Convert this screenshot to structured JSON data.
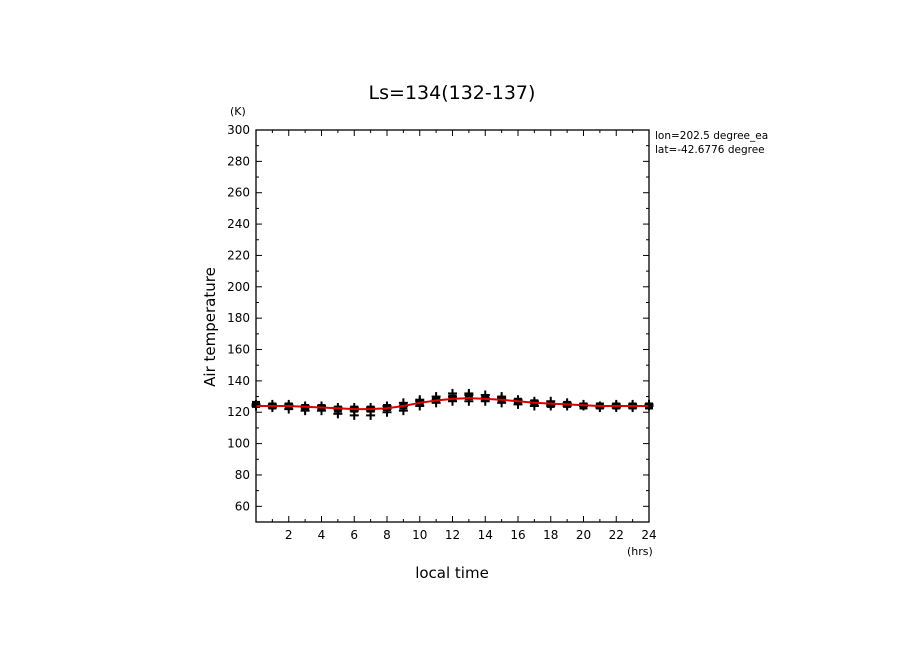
{
  "chart_data": {
    "type": "scatter",
    "title": "Ls=134(132-137)",
    "xlabel": "local time",
    "ylabel": "Air temperature",
    "x_unit": "(hrs)",
    "y_unit": "(K)",
    "xlim": [
      0,
      24
    ],
    "ylim": [
      50,
      300
    ],
    "xticks": [
      2,
      4,
      6,
      8,
      10,
      12,
      14,
      16,
      18,
      20,
      22,
      24
    ],
    "yticks": [
      60,
      80,
      100,
      120,
      140,
      160,
      180,
      200,
      220,
      240,
      260,
      280,
      300
    ],
    "annotations": [
      "lon=202.5 degree_ea",
      "lat=-42.6776 degree"
    ],
    "series": [
      {
        "marker": "plus",
        "color": "#000000",
        "points": [
          [
            0,
            125
          ],
          [
            0,
            124
          ],
          [
            1,
            124
          ],
          [
            1,
            123
          ],
          [
            1,
            125
          ],
          [
            2,
            124
          ],
          [
            2,
            122
          ],
          [
            2,
            125
          ],
          [
            3,
            123
          ],
          [
            3,
            121
          ],
          [
            3,
            124
          ],
          [
            4,
            123
          ],
          [
            4,
            121
          ],
          [
            4,
            124
          ],
          [
            5,
            122
          ],
          [
            5,
            119
          ],
          [
            5,
            123
          ],
          [
            6,
            121
          ],
          [
            6,
            118
          ],
          [
            6,
            123
          ],
          [
            7,
            121
          ],
          [
            7,
            118
          ],
          [
            7,
            123
          ],
          [
            8,
            122
          ],
          [
            8,
            120
          ],
          [
            8,
            124
          ],
          [
            9,
            124
          ],
          [
            9,
            121
          ],
          [
            9,
            126
          ],
          [
            10,
            127
          ],
          [
            10,
            124
          ],
          [
            10,
            128
          ],
          [
            11,
            128
          ],
          [
            11,
            126
          ],
          [
            11,
            130
          ],
          [
            12,
            130
          ],
          [
            12,
            127
          ],
          [
            12,
            132
          ],
          [
            13,
            131
          ],
          [
            13,
            127
          ],
          [
            13,
            132
          ],
          [
            14,
            129
          ],
          [
            14,
            127
          ],
          [
            14,
            131
          ],
          [
            15,
            129
          ],
          [
            15,
            126
          ],
          [
            15,
            130
          ],
          [
            16,
            127
          ],
          [
            16,
            125
          ],
          [
            16,
            128
          ],
          [
            17,
            126
          ],
          [
            17,
            124
          ],
          [
            17,
            127
          ],
          [
            18,
            125
          ],
          [
            18,
            124
          ],
          [
            18,
            127
          ],
          [
            19,
            125
          ],
          [
            19,
            124
          ],
          [
            19,
            126
          ],
          [
            20,
            124
          ],
          [
            20,
            125
          ],
          [
            21,
            124
          ],
          [
            21,
            123
          ],
          [
            22,
            124
          ],
          [
            22,
            123
          ],
          [
            22,
            125
          ],
          [
            23,
            124
          ],
          [
            23,
            125
          ],
          [
            23,
            123
          ],
          [
            24,
            125
          ],
          [
            24,
            124
          ]
        ]
      },
      {
        "marker": "square",
        "color": "#000000",
        "points": [
          [
            0,
            125
          ],
          [
            1,
            124
          ],
          [
            2,
            124
          ],
          [
            3,
            123
          ],
          [
            4,
            123
          ],
          [
            5,
            122
          ],
          [
            6,
            122
          ],
          [
            7,
            122
          ],
          [
            8,
            123
          ],
          [
            9,
            124
          ],
          [
            10,
            126
          ],
          [
            11,
            128
          ],
          [
            12,
            129
          ],
          [
            13,
            130
          ],
          [
            14,
            129
          ],
          [
            15,
            128
          ],
          [
            16,
            127
          ],
          [
            17,
            126
          ],
          [
            18,
            125
          ],
          [
            19,
            125
          ],
          [
            20,
            124
          ],
          [
            21,
            124
          ],
          [
            22,
            124
          ],
          [
            23,
            124
          ],
          [
            24,
            124
          ]
        ]
      },
      {
        "marker": "line",
        "color": "#dd0000",
        "points": [
          [
            0,
            124
          ],
          [
            1,
            124
          ],
          [
            2,
            124
          ],
          [
            3,
            123.5
          ],
          [
            4,
            123
          ],
          [
            5,
            122.5
          ],
          [
            6,
            122
          ],
          [
            7,
            122
          ],
          [
            8,
            122.5
          ],
          [
            9,
            124
          ],
          [
            10,
            126
          ],
          [
            11,
            127.5
          ],
          [
            12,
            128.5
          ],
          [
            13,
            129
          ],
          [
            14,
            128.5
          ],
          [
            15,
            128
          ],
          [
            16,
            127
          ],
          [
            17,
            126
          ],
          [
            18,
            125.5
          ],
          [
            19,
            125
          ],
          [
            20,
            124.5
          ],
          [
            21,
            124
          ],
          [
            22,
            124
          ],
          [
            23,
            124
          ],
          [
            24,
            124
          ]
        ]
      }
    ]
  }
}
